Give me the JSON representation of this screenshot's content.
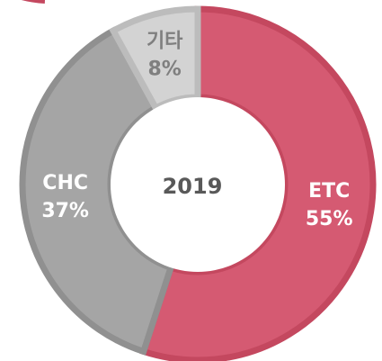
{
  "chart_data": {
    "type": "pie",
    "title": "2019",
    "categories": [
      "ETC",
      "CHC",
      "기타"
    ],
    "values": [
      55,
      37,
      8
    ],
    "value_labels": [
      "55%",
      "37%",
      "8%"
    ],
    "colors": [
      "#d55a72",
      "#a5a5a5",
      "#d3d3d3"
    ],
    "edge_colors": [
      "#c4485f",
      "#909090",
      "#bcbcbc"
    ],
    "label_colors": [
      "#ffffff",
      "#ffffff",
      "#7f7f7f"
    ]
  }
}
